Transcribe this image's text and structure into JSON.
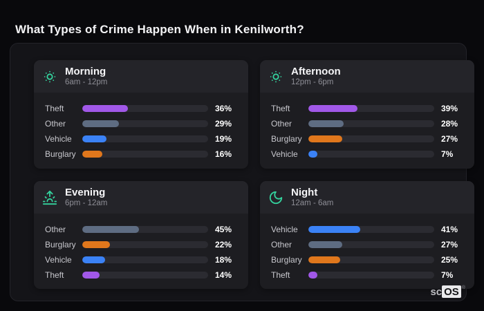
{
  "page": {
    "title": "What Types of Crime Happen When in Kenilworth?"
  },
  "brand": {
    "prefix": "sc",
    "suffix": "OS",
    "registered": "®"
  },
  "colors": {
    "accent_teal": "#34d39e",
    "page_bg": "#09090c",
    "container_bg": "#141418",
    "panel_bg": "#1d1d21",
    "panel_header_bg": "#242429",
    "bar_track": "#2b2b31",
    "label_text": "#c8c8ce",
    "value_text": "#ffffff",
    "categories": {
      "Theft": "#a158e8",
      "Other": "#5e6c82",
      "Vehicle": "#3b82f6",
      "Burglary": "#e0771c"
    }
  },
  "chart_data": [
    {
      "type": "bar",
      "orientation": "horizontal",
      "title": "Morning",
      "subtitle": "6am - 12pm",
      "icon": "sun-dim",
      "categories": [
        "Theft",
        "Other",
        "Vehicle",
        "Burglary"
      ],
      "values": [
        36,
        29,
        19,
        16
      ],
      "unit": "%",
      "xlim": [
        0,
        100
      ],
      "grid": false,
      "legend": false
    },
    {
      "type": "bar",
      "orientation": "horizontal",
      "title": "Afternoon",
      "subtitle": "12pm - 6pm",
      "icon": "sun-dim",
      "categories": [
        "Theft",
        "Other",
        "Burglary",
        "Vehicle"
      ],
      "values": [
        39,
        28,
        27,
        7
      ],
      "unit": "%",
      "xlim": [
        0,
        100
      ],
      "grid": false,
      "legend": false
    },
    {
      "type": "bar",
      "orientation": "horizontal",
      "title": "Evening",
      "subtitle": "6pm - 12am",
      "icon": "sunrise",
      "categories": [
        "Other",
        "Burglary",
        "Vehicle",
        "Theft"
      ],
      "values": [
        45,
        22,
        18,
        14
      ],
      "unit": "%",
      "xlim": [
        0,
        100
      ],
      "grid": false,
      "legend": false
    },
    {
      "type": "bar",
      "orientation": "horizontal",
      "title": "Night",
      "subtitle": "12am - 6am",
      "icon": "moon",
      "categories": [
        "Vehicle",
        "Other",
        "Burglary",
        "Theft"
      ],
      "values": [
        41,
        27,
        25,
        7
      ],
      "unit": "%",
      "xlim": [
        0,
        100
      ],
      "grid": false,
      "legend": false
    }
  ]
}
